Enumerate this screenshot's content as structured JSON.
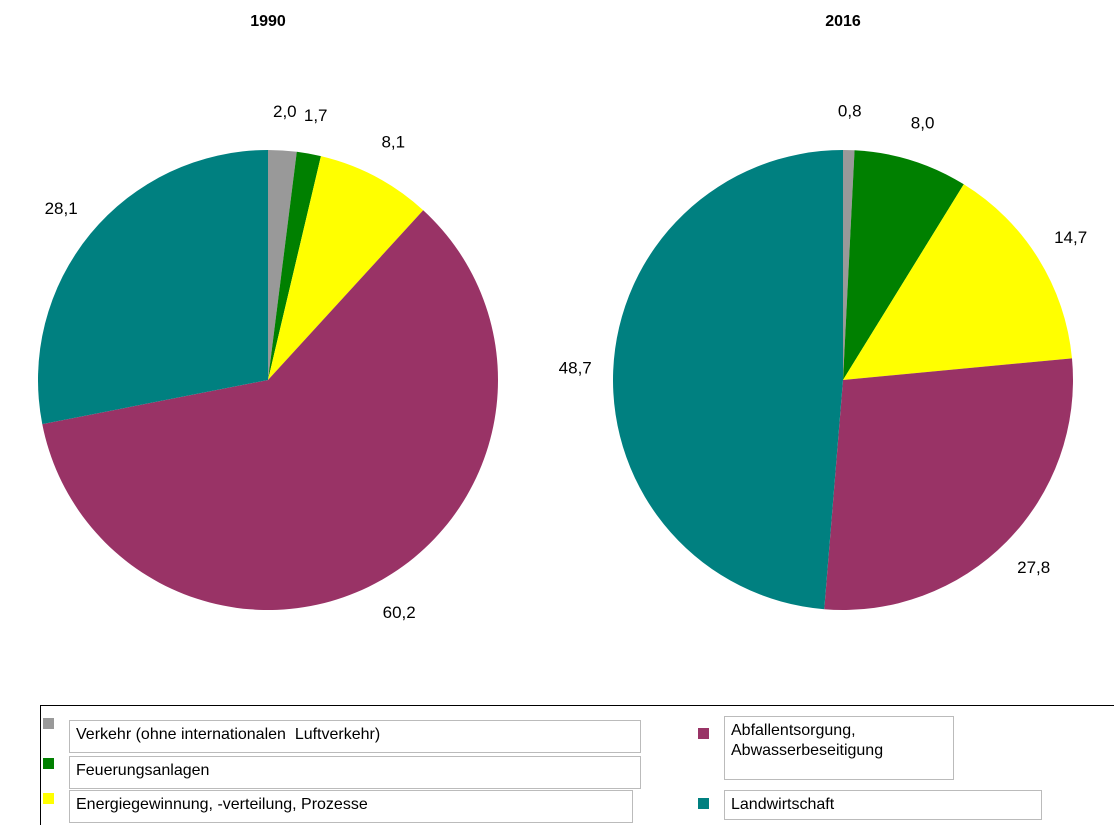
{
  "chart_data": [
    {
      "type": "pie",
      "title": "1990",
      "categories": [
        "Verkehr (ohne internationalen  Luftverkehr)",
        "Feuerungsanlagen",
        "Energiegewinnung, -verteilung, Prozesse",
        "Abfallentsorgung, Abwasserbeseitigung",
        "Landwirtschaft"
      ],
      "values": [
        2.0,
        1.7,
        8.1,
        60.2,
        28.1
      ],
      "value_labels": [
        "2,0",
        "1,7",
        "8,1",
        "60,2",
        "28,1"
      ],
      "colors": [
        "#999999",
        "#008000",
        "#ffff00",
        "#993366",
        "#008080"
      ]
    },
    {
      "type": "pie",
      "title": "2016",
      "categories": [
        "Verkehr (ohne internationalen  Luftverkehr)",
        "Feuerungsanlagen",
        "Energiegewinnung, -verteilung, Prozesse",
        "Abfallentsorgung, Abwasserbeseitigung",
        "Landwirtschaft"
      ],
      "values": [
        0.8,
        8.0,
        14.7,
        27.8,
        48.7
      ],
      "value_labels": [
        "0,8",
        "8,0",
        "14,7",
        "27,8",
        "48,7"
      ],
      "colors": [
        "#999999",
        "#008000",
        "#ffff00",
        "#993366",
        "#008080"
      ]
    }
  ]
}
